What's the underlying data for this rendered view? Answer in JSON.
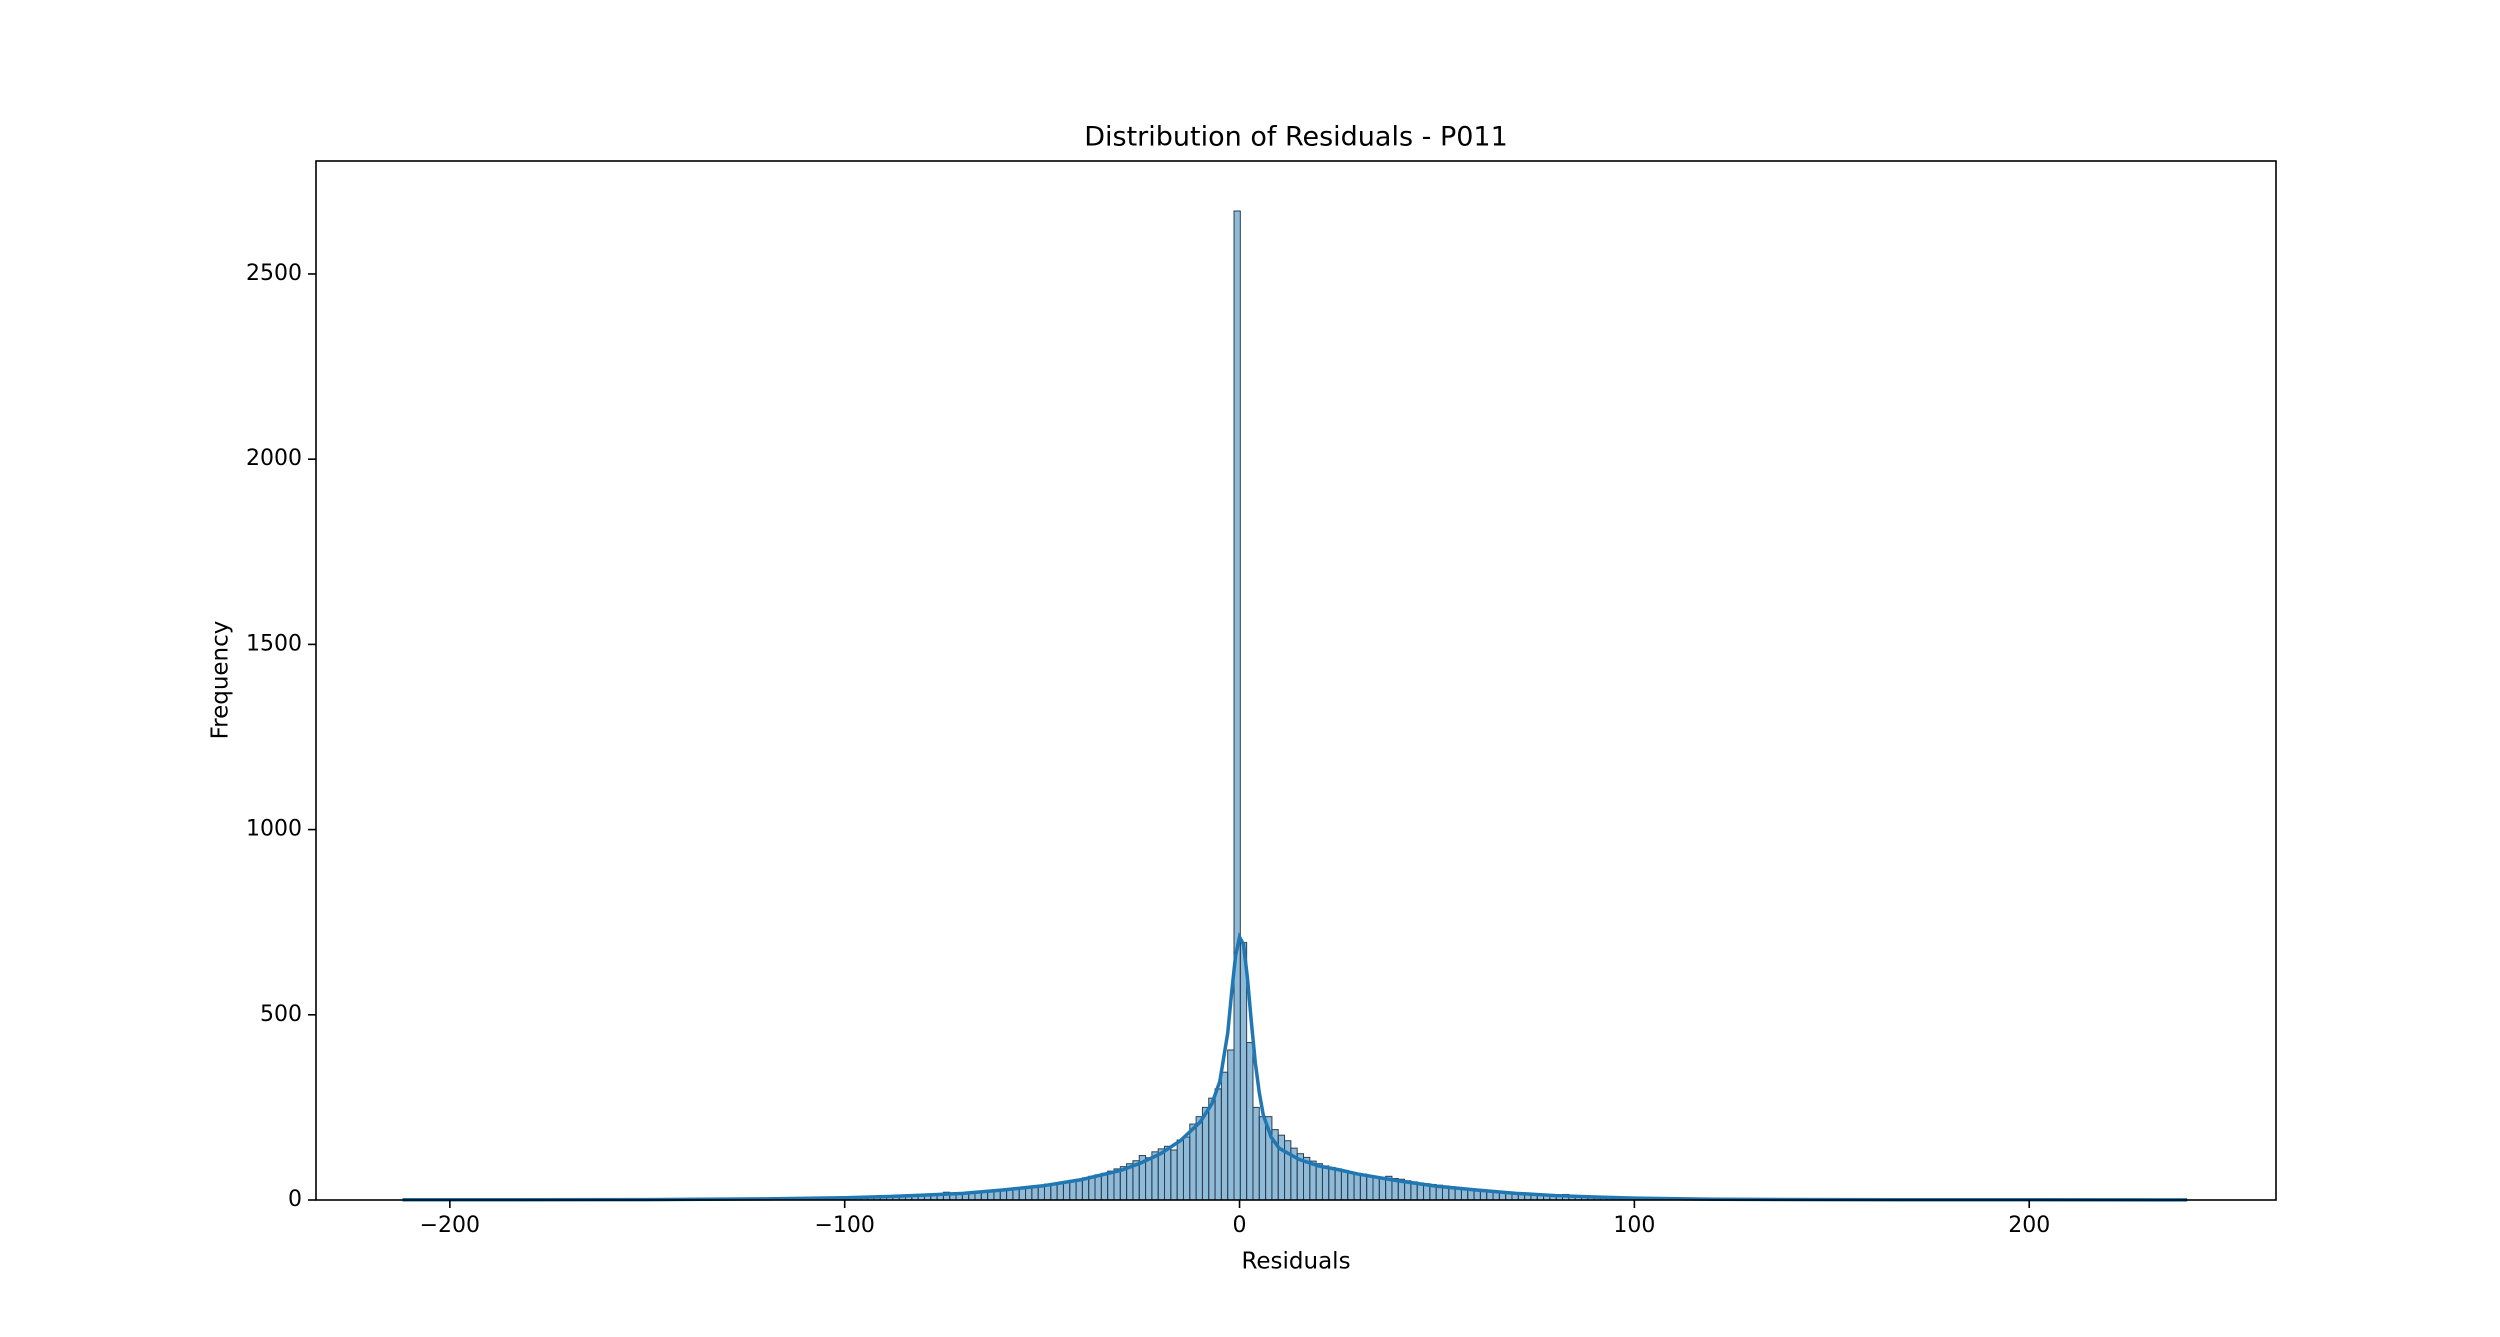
{
  "chart_data": {
    "type": "histogram",
    "title": "Distribution of Residuals - P011",
    "xlabel": "Residuals",
    "ylabel": "Frequency",
    "color": "rgba(31,119,180,0.5)",
    "edgecolor": "#2b3f52",
    "bins": [
      -211,
      -209.4,
      -207.8,
      -206.2,
      -204.6,
      -203,
      -201.4,
      -199.8,
      -198.2,
      -196.6,
      -195,
      -193.4,
      -191.8,
      -190.2,
      -188.6,
      -187,
      -185.4,
      -183.8,
      -182.2,
      -180.6,
      -179,
      -177.4,
      -175.8,
      -174.2,
      -172.6,
      -171,
      -169.4,
      -167.8,
      -166.2,
      -164.6,
      -163,
      -161.4,
      -159.8,
      -158.2,
      -156.6,
      -155,
      -153.4,
      -151.8,
      -150.2,
      -148.6,
      -147,
      -145.4,
      -143.8,
      -142.2,
      -140.6,
      -139,
      -137.4,
      -135.8,
      -134.2,
      -132.6,
      -131,
      -129.4,
      -127.8,
      -126.2,
      -124.6,
      -123,
      -121.4,
      -119.8,
      -118.2,
      -116.6,
      -115,
      -113.4,
      -111.8,
      -110.2,
      -108.6,
      -107,
      -105.4,
      -103.8,
      -102.2,
      -100.6,
      -99,
      -97.4,
      -95.8,
      -94.2,
      -92.6,
      -91,
      -89.4,
      -87.8,
      -86.2,
      -84.6,
      -83,
      -81.4,
      -79.8,
      -78.2,
      -76.6,
      -75,
      -73.4,
      -71.8,
      -70.2,
      -68.6,
      -67,
      -65.4,
      -63.8,
      -62.2,
      -60.6,
      -59,
      -57.4,
      -55.8,
      -54.2,
      -52.6,
      -51,
      -49.4,
      -47.8,
      -46.2,
      -44.6,
      -43,
      -41.4,
      -39.8,
      -38.2,
      -36.6,
      -35,
      -33.4,
      -31.8,
      -30.2,
      -28.6,
      -27,
      -25.4,
      -23.8,
      -22.2,
      -20.6,
      -19,
      -17.4,
      -15.8,
      -14.2,
      -12.6,
      -11,
      -9.4,
      -7.8,
      -6.2,
      -4.6,
      -3,
      -1.4,
      0.2,
      1.8,
      3.4,
      5,
      6.6,
      8.2,
      9.8,
      11.4,
      13,
      14.6,
      16.2,
      17.8,
      19.4,
      21,
      22.6,
      24.2,
      25.8,
      27.4,
      29,
      30.6,
      32.2,
      33.8,
      35.4,
      37,
      38.6,
      40.2,
      41.8,
      43.4,
      45,
      46.6,
      48.2,
      49.8,
      51.4,
      53,
      54.6,
      56.2,
      57.8,
      59.4,
      61,
      62.6,
      64.2,
      65.8,
      67.4,
      69,
      70.6,
      72.2,
      73.8,
      75.4,
      77,
      78.6,
      80.2,
      81.8,
      83.4,
      85,
      86.6,
      88.2,
      89.8,
      91.4,
      93,
      94.6,
      96.2,
      97.8,
      99.4,
      101,
      102.6,
      104.2,
      105.8,
      107.4,
      109,
      110.6,
      112.2,
      113.8,
      115.4,
      117,
      118.6,
      120.2,
      121.8,
      123.4,
      125,
      126.6,
      128.2,
      129.8,
      131.4,
      133,
      134.6,
      136.2,
      137.8,
      139.4,
      141,
      142.6,
      144.2,
      145.8,
      147.4,
      149,
      150.6,
      152.2,
      153.8,
      155.4,
      157,
      158.6,
      160.2,
      161.8,
      163.4,
      165,
      166.6,
      168.2,
      169.8,
      171.4,
      173,
      174.6,
      176.2,
      177.8,
      179.4,
      181,
      182.6,
      184.2,
      185.8,
      187.4,
      189,
      190.6,
      192.2,
      193.8,
      195.4,
      197,
      198.6,
      200.2,
      201.8,
      203.4,
      205,
      206.6,
      208.2,
      209.8,
      211.4,
      213,
      214.6,
      216.2,
      217.8,
      219.4,
      221,
      222.6,
      224.2,
      225.8,
      227.4,
      229,
      230.6,
      232.2,
      233.8,
      235.4,
      237,
      238.6,
      240.2,
      241.8
    ],
    "counts": [
      0,
      0,
      1,
      0,
      0,
      0,
      0,
      0,
      1,
      0,
      0,
      0,
      0,
      0,
      0,
      1,
      0,
      0,
      0,
      0,
      1,
      0,
      0,
      0,
      0,
      1,
      0,
      0,
      1,
      0,
      1,
      1,
      0,
      1,
      1,
      1,
      0,
      1,
      1,
      2,
      1,
      1,
      1,
      2,
      1,
      1,
      2,
      1,
      2,
      2,
      1,
      2,
      2,
      2,
      2,
      3,
      2,
      3,
      3,
      3,
      4,
      3,
      4,
      4,
      5,
      4,
      5,
      5,
      6,
      6,
      6,
      7,
      7,
      8,
      8,
      9,
      9,
      10,
      10,
      11,
      12,
      13,
      13,
      14,
      15,
      21,
      16,
      17,
      18,
      19,
      21,
      23,
      25,
      27,
      29,
      31,
      32,
      34,
      36,
      38,
      40,
      43,
      42,
      46,
      49,
      53,
      56,
      60,
      64,
      68,
      72,
      78,
      84,
      90,
      98,
      106,
      120,
      114,
      130,
      138,
      145,
      135,
      162,
      170,
      205,
      225,
      250,
      275,
      300,
      345,
      405,
      2670,
      695,
      425,
      250,
      225,
      225,
      190,
      175,
      160,
      140,
      125,
      115,
      105,
      98,
      92,
      88,
      84,
      80,
      75,
      72,
      70,
      66,
      63,
      61,
      64,
      58,
      56,
      52,
      49,
      46,
      44,
      42,
      40,
      38,
      36,
      34,
      32,
      30,
      28,
      26,
      25,
      24,
      22,
      21,
      20,
      18,
      17,
      16,
      15,
      14,
      13,
      12,
      15,
      10,
      9,
      8,
      7,
      6,
      6,
      5,
      5,
      4,
      4,
      4,
      3,
      3,
      3,
      3,
      2,
      2,
      2,
      2,
      2,
      1,
      2,
      1,
      1,
      1,
      1,
      1,
      1,
      0,
      1,
      1,
      0,
      1,
      0,
      1,
      0,
      0,
      1,
      0,
      0,
      1,
      0,
      0,
      0,
      1,
      0,
      0,
      1,
      0,
      0,
      0,
      1,
      0,
      0,
      0,
      0,
      1,
      0,
      0,
      0,
      0,
      0,
      1,
      0,
      0,
      0,
      0,
      0,
      0,
      1,
      0,
      0,
      0,
      0,
      0,
      0,
      1,
      0,
      0,
      0,
      0,
      0,
      0,
      0,
      0,
      1,
      0,
      0,
      0,
      0,
      0,
      0,
      0,
      0,
      0,
      0,
      0,
      0,
      0
    ],
    "kde": {
      "color": "#1f77b4",
      "x": [
        -212,
        -150,
        -120,
        -100,
        -90,
        -80,
        -70,
        -60,
        -50,
        -40,
        -30,
        -25,
        -20,
        -15,
        -10,
        -7,
        -5,
        -3,
        -2,
        -1,
        0,
        1,
        2,
        3,
        4,
        5,
        6,
        8,
        10,
        15,
        20,
        25,
        30,
        40,
        50,
        60,
        70,
        80,
        90,
        100,
        120,
        150,
        200,
        240
      ],
      "y": [
        0.5,
        1,
        3,
        6,
        9,
        13,
        18,
        27,
        38,
        55,
        80,
        100,
        125,
        160,
        210,
        260,
        320,
        450,
        560,
        660,
        710,
        690,
        600,
        480,
        370,
        290,
        230,
        170,
        140,
        110,
        92,
        82,
        70,
        52,
        37,
        27,
        18,
        12,
        8,
        5,
        2,
        1,
        0.5,
        0.3
      ]
    },
    "xlim": [
      -233.9,
      262.5
    ],
    "ylim": [
      0,
      2805
    ],
    "xticks": [
      {
        "value": -200,
        "label": "−200"
      },
      {
        "value": -100,
        "label": "−100"
      },
      0,
      100,
      200
    ],
    "yticks": [
      0,
      500,
      1000,
      1500,
      2000,
      2500
    ]
  }
}
